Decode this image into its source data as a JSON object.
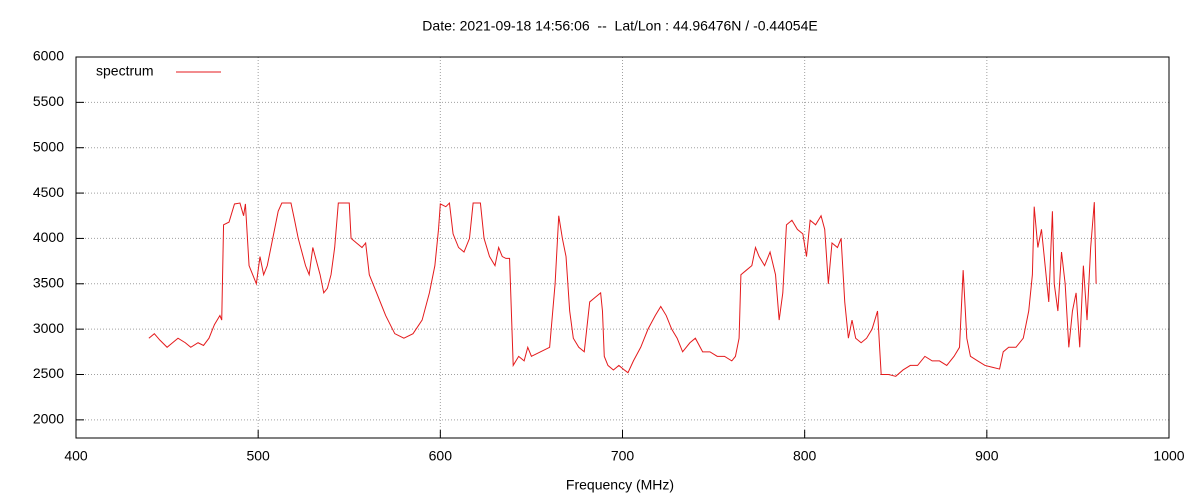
{
  "chart_data": {
    "type": "line",
    "title": "Date: 2021-09-18 14:56:06  --  Lat/Lon : 44.96476N / -0.44054E",
    "x_label": "Frequency (MHz)",
    "xlim": [
      400,
      1000
    ],
    "xticks": [
      400,
      500,
      600,
      700,
      800,
      900,
      1000
    ],
    "ylim": [
      1800,
      6000
    ],
    "yticks": [
      2000,
      2500,
      3000,
      3500,
      4000,
      4500,
      5000,
      5500,
      6000
    ],
    "grid": true,
    "legend": "top-left",
    "x": [
      440,
      443,
      446,
      450,
      453,
      456,
      460,
      463,
      467,
      470,
      473,
      476,
      479,
      480,
      481,
      484,
      487,
      490,
      492,
      493,
      495,
      497,
      499,
      501,
      503,
      505,
      507,
      509,
      511,
      513,
      516,
      518,
      520,
      522,
      524,
      526,
      528,
      530,
      532,
      534,
      536,
      538,
      540,
      542,
      544,
      547,
      550,
      551,
      554,
      557,
      559,
      561,
      565,
      570,
      575,
      580,
      585,
      590,
      594,
      597,
      599,
      600,
      603,
      605,
      607,
      610,
      613,
      616,
      618,
      622,
      624,
      627,
      630,
      632,
      634,
      636,
      638,
      640,
      643,
      646,
      648,
      650,
      655,
      660,
      663,
      665,
      667,
      669,
      671,
      673,
      676,
      679,
      682,
      685,
      688,
      689,
      690,
      692,
      695,
      698,
      701,
      703,
      706,
      710,
      714,
      718,
      721,
      724,
      727,
      730,
      733,
      737,
      740,
      744,
      748,
      752,
      756,
      760,
      762,
      764,
      765,
      768,
      771,
      773,
      775,
      778,
      781,
      784,
      786,
      788,
      790,
      793,
      796,
      799,
      801,
      803,
      806,
      809,
      811,
      813,
      815,
      818,
      820,
      822,
      824,
      826,
      828,
      831,
      834,
      837,
      840,
      842,
      846,
      850,
      854,
      858,
      862,
      866,
      870,
      874,
      878,
      882,
      885,
      887,
      889,
      891,
      895,
      899,
      903,
      907,
      909,
      912,
      916,
      920,
      923,
      925,
      926,
      928,
      930,
      932,
      934,
      936,
      937,
      939,
      941,
      943,
      945,
      947,
      949,
      951,
      953,
      955,
      957,
      959,
      960
    ],
    "series": [
      {
        "name": "spectrum",
        "color": "#e41a1c",
        "values": [
          2900,
          2950,
          2880,
          2800,
          2850,
          2900,
          2850,
          2800,
          2850,
          2820,
          2900,
          3050,
          3150,
          3100,
          4150,
          4180,
          4380,
          4390,
          4250,
          4380,
          3700,
          3600,
          3500,
          3800,
          3600,
          3700,
          3900,
          4100,
          4300,
          4390,
          4390,
          4390,
          4200,
          4000,
          3850,
          3700,
          3600,
          3900,
          3750,
          3600,
          3400,
          3450,
          3600,
          3900,
          4390,
          4390,
          4390,
          4000,
          3950,
          3900,
          3950,
          3600,
          3400,
          3150,
          2950,
          2900,
          2950,
          3100,
          3400,
          3700,
          4100,
          4380,
          4350,
          4390,
          4050,
          3900,
          3850,
          4000,
          4390,
          4390,
          4000,
          3800,
          3700,
          3900,
          3800,
          3780,
          3780,
          2600,
          2700,
          2650,
          2800,
          2700,
          2750,
          2800,
          3500,
          4250,
          4000,
          3800,
          3200,
          2900,
          2800,
          2750,
          3300,
          3350,
          3400,
          3200,
          2700,
          2600,
          2550,
          2600,
          2550,
          2520,
          2650,
          2800,
          3000,
          3150,
          3250,
          3150,
          3000,
          2900,
          2750,
          2850,
          2900,
          2750,
          2750,
          2700,
          2700,
          2650,
          2700,
          2900,
          3600,
          3650,
          3700,
          3900,
          3800,
          3700,
          3850,
          3600,
          3100,
          3400,
          4150,
          4200,
          4100,
          4050,
          3800,
          4200,
          4150,
          4250,
          4100,
          3500,
          3950,
          3900,
          4000,
          3300,
          2900,
          3100,
          2900,
          2850,
          2900,
          3000,
          3200,
          2500,
          2500,
          2480,
          2550,
          2600,
          2600,
          2700,
          2650,
          2650,
          2600,
          2700,
          2800,
          3650,
          2900,
          2700,
          2650,
          2600,
          2580,
          2560,
          2750,
          2800,
          2800,
          2900,
          3200,
          3600,
          4350,
          3900,
          4100,
          3700,
          3300,
          4300,
          3500,
          3200,
          3850,
          3500,
          2800,
          3200,
          3400,
          2800,
          3700,
          3100,
          3900,
          4400,
          3500
        ]
      }
    ]
  }
}
